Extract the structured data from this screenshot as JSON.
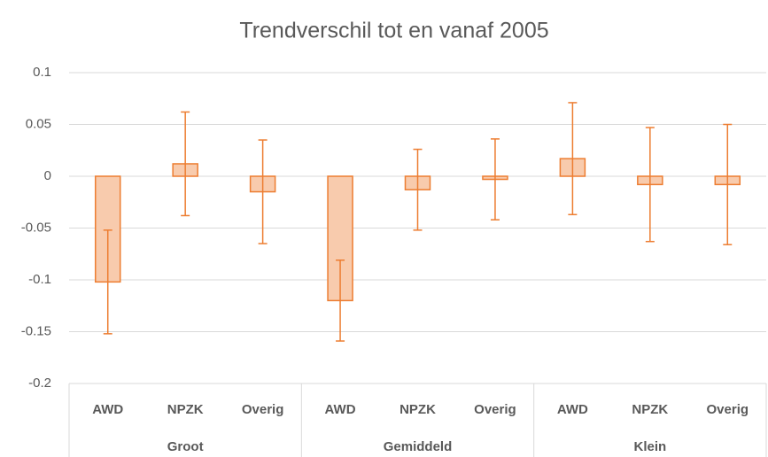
{
  "chart_data": {
    "type": "bar",
    "title": "Trendverschil tot en vanaf 2005",
    "categories": [
      "AWD",
      "NPZK",
      "Overig",
      "AWD",
      "NPZK",
      "Overig",
      "AWD",
      "NPZK",
      "Overig"
    ],
    "groups": [
      "Groot",
      "Gemiddeld",
      "Klein"
    ],
    "values": [
      -0.102,
      0.012,
      -0.015,
      -0.12,
      -0.013,
      -0.003,
      0.017,
      -0.008,
      -0.008
    ],
    "errors": [
      0.05,
      0.05,
      0.05,
      0.039,
      0.039,
      0.039,
      0.054,
      0.055,
      0.058
    ],
    "color": "#f8cbad",
    "edge_color": "#ed7d31",
    "ylim": [
      -0.2,
      0.1
    ],
    "yticks": [
      -0.2,
      -0.15,
      -0.1,
      -0.05,
      0,
      0.05,
      0.1
    ],
    "grid": true
  }
}
